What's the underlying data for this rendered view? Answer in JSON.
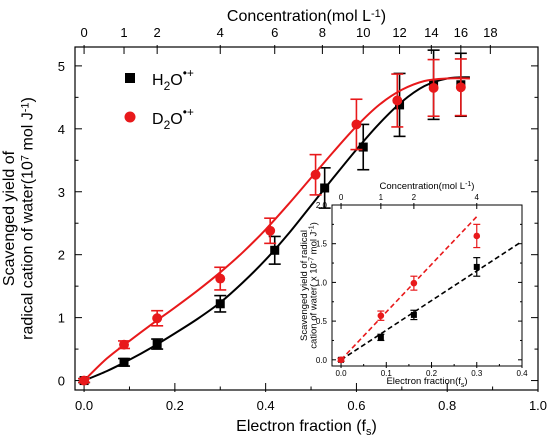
{
  "chart_data": [
    {
      "type": "scatter",
      "title": "",
      "xlabel": "Electron fraction (f",
      "xlabel_sub": "s",
      "xlabel_end": ")",
      "ylabel_line1": "Scavenged yield of",
      "ylabel_line2": "radical cation of water(10",
      "ylabel_sup": "7",
      "ylabel_end": " mol J",
      "ylabel_sup2": "-1",
      "ylabel_close": ")",
      "x2label": "Concentration(mol L",
      "x2label_sup": "-1",
      "x2label_end": ")",
      "xlim": [
        -0.02,
        1.0
      ],
      "ylim": [
        -0.15,
        5.3
      ],
      "x2lim_note": "top axis: concentration 0–18 mol/L mapped to electron fraction",
      "xticks": [
        0.0,
        0.2,
        0.4,
        0.6,
        0.8,
        1.0
      ],
      "xtick_labels": [
        "0.0",
        "0.2",
        "0.4",
        "0.6",
        "0.8",
        "1.0"
      ],
      "yticks": [
        0,
        1,
        2,
        3,
        4,
        5
      ],
      "ytick_labels": [
        "0",
        "1",
        "2",
        "3",
        "4",
        "5"
      ],
      "x2ticks": [
        0,
        2,
        4,
        6,
        8,
        10,
        12,
        14,
        16,
        18
      ],
      "x2tick_positions": [
        0.0,
        0.161,
        0.3,
        0.42,
        0.525,
        0.615,
        0.695,
        0.765,
        0.83,
        0.895
      ],
      "x2tick_labels": [
        "0",
        "2",
        "4",
        "6",
        "8",
        "10",
        "12",
        "14",
        "16",
        "18"
      ],
      "x2minor_labels": [
        {
          "label": "1",
          "x": 0.088
        }
      ],
      "legend_position": "top-left",
      "series": [
        {
          "name": "H",
          "name_sub": "2",
          "name_rest": "O",
          "name_sup": "•+",
          "color": "#000000",
          "marker": "square",
          "x": [
            0.0,
            0.088,
            0.161,
            0.3,
            0.42,
            0.53,
            0.615,
            0.695,
            0.77,
            0.83
          ],
          "y": [
            0.0,
            0.29,
            0.58,
            1.22,
            2.07,
            3.06,
            3.71,
            4.38,
            4.7,
            4.7
          ],
          "yerr": [
            0.03,
            0.06,
            0.08,
            0.13,
            0.22,
            0.32,
            0.36,
            0.5,
            0.55,
            0.5
          ],
          "fit_x": [
            0.0,
            0.05,
            0.1,
            0.15,
            0.2,
            0.25,
            0.3,
            0.35,
            0.4,
            0.45,
            0.5,
            0.55,
            0.6,
            0.65,
            0.7,
            0.75,
            0.8,
            0.85
          ],
          "fit_y": [
            0.0,
            0.15,
            0.33,
            0.53,
            0.75,
            0.98,
            1.24,
            1.56,
            1.92,
            2.33,
            2.78,
            3.23,
            3.67,
            4.08,
            4.43,
            4.68,
            4.8,
            4.82
          ]
        },
        {
          "name": "D",
          "name_sub": "2",
          "name_rest": "O",
          "name_sup": "•+",
          "color": "#e8191b",
          "marker": "circle",
          "x": [
            0.0,
            0.088,
            0.161,
            0.3,
            0.41,
            0.51,
            0.6,
            0.69,
            0.77,
            0.83
          ],
          "y": [
            0.0,
            0.57,
            0.99,
            1.62,
            2.38,
            3.27,
            4.07,
            4.45,
            4.65,
            4.66
          ],
          "yerr": [
            0.03,
            0.06,
            0.12,
            0.18,
            0.2,
            0.32,
            0.4,
            0.42,
            0.45,
            0.45
          ],
          "fit_x": [
            0.0,
            0.05,
            0.1,
            0.15,
            0.2,
            0.25,
            0.3,
            0.35,
            0.4,
            0.45,
            0.5,
            0.55,
            0.6,
            0.65,
            0.7,
            0.75,
            0.8,
            0.85
          ],
          "fit_y": [
            0.0,
            0.35,
            0.63,
            0.9,
            1.16,
            1.43,
            1.72,
            2.04,
            2.4,
            2.8,
            3.22,
            3.64,
            4.04,
            4.38,
            4.62,
            4.76,
            4.8,
            4.8
          ]
        }
      ]
    },
    {
      "type": "scatter",
      "title": "",
      "ylabel_line1": "Scavenged yield of radical",
      "ylabel_line2": "cation of water( x 10",
      "ylabel_sup": "-7",
      "ylabel_end": " mol J",
      "ylabel_sup2": "-1",
      "ylabel_close": ")",
      "xlabel": "Electron fraction(f",
      "xlabel_sub": "s",
      "xlabel_end": ")",
      "x2label": "Concentration(mol L",
      "x2label_sup": "-1",
      "x2label_end": ")",
      "xlim": [
        -0.02,
        0.4
      ],
      "ylim": [
        -0.08,
        2.0
      ],
      "xticks": [
        0.0,
        0.1,
        0.2,
        0.3,
        0.4
      ],
      "xtick_labels": [
        "0.0",
        "0.1",
        "0.2",
        "0.3",
        "0.4"
      ],
      "yticks": [
        0.0,
        0.5,
        1.0,
        1.5,
        2.0
      ],
      "ytick_labels": [
        "0.0",
        "0.5",
        "1.0",
        "1.5",
        "2.0"
      ],
      "x2ticks": [
        0,
        1,
        2,
        4
      ],
      "x2tick_positions": [
        0.0,
        0.088,
        0.161,
        0.3
      ],
      "x2tick_labels": [
        "0",
        "1",
        "2",
        "4"
      ],
      "series": [
        {
          "color": "#000000",
          "marker": "square",
          "x": [
            0.0,
            0.088,
            0.161,
            0.3
          ],
          "y": [
            0.0,
            0.29,
            0.58,
            1.2
          ],
          "yerr": [
            0.02,
            0.04,
            0.06,
            0.12
          ],
          "fit_x": [
            0.0,
            0.4
          ],
          "fit_y": [
            0.0,
            1.53
          ]
        },
        {
          "color": "#e8191b",
          "marker": "circle",
          "x": [
            0.0,
            0.088,
            0.161,
            0.3
          ],
          "y": [
            0.0,
            0.57,
            0.99,
            1.6
          ],
          "yerr": [
            0.02,
            0.06,
            0.09,
            0.15
          ],
          "fit_x": [
            0.0,
            0.3
          ],
          "fit_y": [
            0.0,
            1.85
          ]
        }
      ]
    }
  ]
}
